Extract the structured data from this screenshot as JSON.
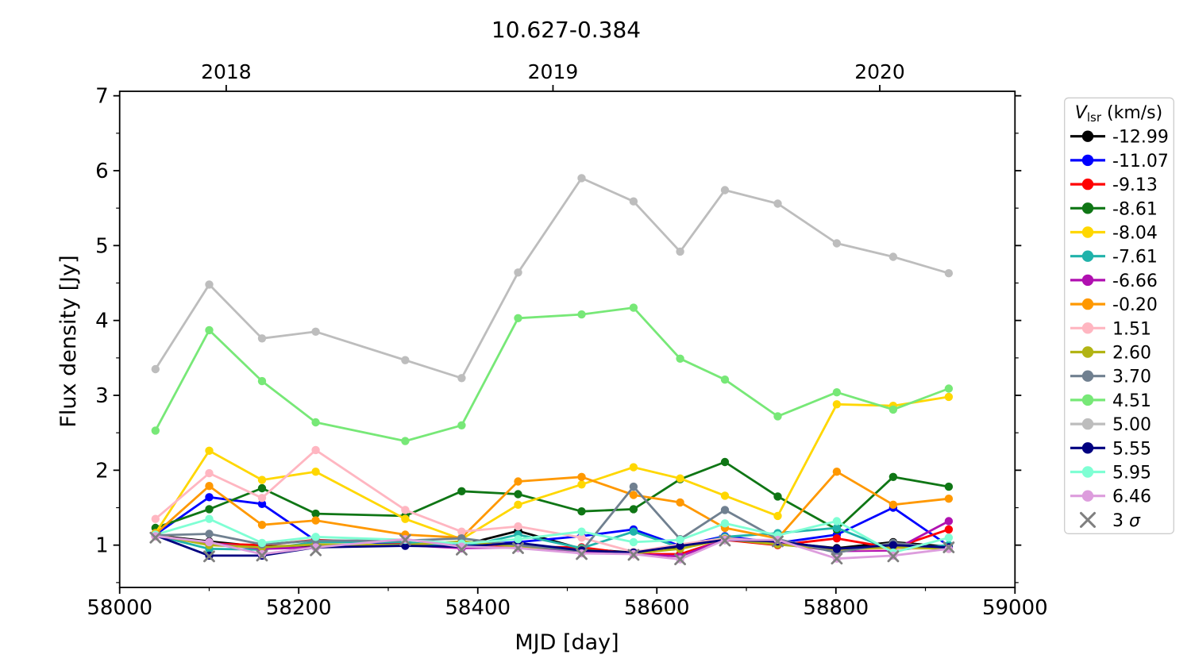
{
  "chart": {
    "title": "10.627-0.384",
    "top_axis": {
      "labels": [
        "2018",
        "2019",
        "2020"
      ],
      "tick_mjd": [
        58119,
        58484,
        58849
      ]
    },
    "x_axis": {
      "label": "MJD [day]",
      "tick_labels": [
        "58000",
        "58200",
        "58400",
        "58600",
        "58800",
        "59000"
      ],
      "minor_step": 100
    },
    "y_axis": {
      "label": "Flux density [Jy]",
      "tick_labels": [
        "1",
        "2",
        "3",
        "4",
        "5",
        "6",
        "7"
      ],
      "minor_step": 0.5
    },
    "legend": {
      "title_v": "V",
      "title_sub": "lsr",
      "title_rest": " (km/s)",
      "sigma_prefix": "3 ",
      "sigma_symbol": "σ"
    }
  },
  "chart_data": {
    "type": "line",
    "title": "10.627-0.384",
    "xlabel": "MJD [day]",
    "ylabel": "Flux density [Jy]",
    "xlim": [
      58000,
      59000
    ],
    "ylim": [
      0.435,
      7.06
    ],
    "grid": false,
    "legend_position": "outside-right",
    "legend_title": "V_lsr (km/s)",
    "x": [
      58040,
      58100,
      58159,
      58219,
      58319,
      58382,
      58445,
      58516,
      58574,
      58626,
      58676,
      58735,
      58801,
      58864,
      58926
    ],
    "series": [
      {
        "name": "-12.99",
        "color": "#000000",
        "marker": "circle",
        "values": [
          1.13,
          1.05,
          0.98,
          1.0,
          1.0,
          1.0,
          1.19,
          0.95,
          0.9,
          0.98,
          1.07,
          1.04,
          0.96,
          1.04,
          0.98
        ]
      },
      {
        "name": "-11.07",
        "color": "#0000FF",
        "marker": "circle",
        "values": [
          1.14,
          1.64,
          1.55,
          1.06,
          1.02,
          1.0,
          1.04,
          1.12,
          1.21,
          0.99,
          1.12,
          1.03,
          1.14,
          1.5,
          0.99
        ]
      },
      {
        "name": "-9.13",
        "color": "#FF0000",
        "marker": "circle",
        "values": [
          1.12,
          1.02,
          1.0,
          1.07,
          1.03,
          0.97,
          0.98,
          0.97,
          0.88,
          0.88,
          1.07,
          1.0,
          1.09,
          0.96,
          1.21
        ]
      },
      {
        "name": "-8.61",
        "color": "#0F7615",
        "marker": "circle",
        "values": [
          1.23,
          1.48,
          1.76,
          1.42,
          1.39,
          1.72,
          1.68,
          1.45,
          1.48,
          1.88,
          2.11,
          1.65,
          1.21,
          1.91,
          1.78
        ]
      },
      {
        "name": "-8.04",
        "color": "#FFD700",
        "marker": "circle",
        "values": [
          1.16,
          2.26,
          1.87,
          1.98,
          1.35,
          1.08,
          1.54,
          1.81,
          2.04,
          1.89,
          1.66,
          1.39,
          2.88,
          2.86,
          2.98
        ]
      },
      {
        "name": "-7.61",
        "color": "#20B2AA",
        "marker": "circle",
        "values": [
          1.13,
          0.95,
          0.94,
          1.04,
          1.04,
          0.97,
          1.14,
          0.96,
          1.18,
          0.97,
          1.11,
          1.16,
          1.23,
          0.93,
          1.0
        ]
      },
      {
        "name": "-6.66",
        "color": "#B010B0",
        "marker": "circle",
        "values": [
          1.12,
          1.03,
          0.95,
          0.97,
          1.0,
          0.96,
          0.97,
          0.92,
          0.88,
          0.85,
          1.08,
          1.02,
          0.92,
          0.93,
          1.32
        ]
      },
      {
        "name": "-0.20",
        "color": "#FF9800",
        "marker": "circle",
        "values": [
          1.15,
          1.79,
          1.27,
          1.33,
          1.14,
          1.1,
          1.85,
          1.91,
          1.67,
          1.57,
          1.23,
          1.09,
          1.98,
          1.54,
          1.62
        ]
      },
      {
        "name": "1.51",
        "color": "#FFB6C1",
        "marker": "circle",
        "values": [
          1.35,
          1.96,
          1.63,
          2.27,
          1.47,
          1.18,
          1.25,
          1.1,
          0.91,
          1.01,
          1.09,
          1.05,
          0.94,
          0.95,
          0.96
        ]
      },
      {
        "name": "2.60",
        "color": "#B2B414",
        "marker": "circle",
        "values": [
          1.14,
          1.0,
          0.97,
          1.01,
          1.0,
          1.05,
          0.98,
          0.94,
          0.89,
          0.95,
          1.08,
          1.01,
          0.94,
          0.97,
          0.95
        ]
      },
      {
        "name": "3.70",
        "color": "#708090",
        "marker": "circle",
        "values": [
          1.13,
          1.15,
          1.01,
          1.06,
          1.06,
          1.09,
          1.0,
          0.92,
          1.78,
          1.08,
          1.47,
          1.08,
          0.9,
          1.03,
          0.96
        ]
      },
      {
        "name": "4.51",
        "color": "#77E877",
        "marker": "circle",
        "values": [
          2.53,
          3.87,
          3.19,
          2.64,
          2.39,
          2.6,
          4.03,
          4.08,
          4.17,
          3.49,
          3.21,
          2.72,
          3.04,
          2.81,
          3.09
        ]
      },
      {
        "name": "5.00",
        "color": "#BDBDBD",
        "marker": "circle",
        "values": [
          3.35,
          4.48,
          3.76,
          3.85,
          3.47,
          3.23,
          4.64,
          5.9,
          5.59,
          4.92,
          5.74,
          5.56,
          5.03,
          4.85,
          4.63
        ]
      },
      {
        "name": "5.55",
        "color": "#000080",
        "marker": "circle",
        "values": [
          1.13,
          0.86,
          0.86,
          0.97,
          0.99,
          0.98,
          1.03,
          0.93,
          0.9,
          0.99,
          1.07,
          1.05,
          0.95,
          1.0,
          0.97
        ]
      },
      {
        "name": "5.95",
        "color": "#7FFFD4",
        "marker": "circle",
        "values": [
          1.14,
          1.35,
          1.03,
          1.11,
          1.07,
          1.02,
          1.08,
          1.18,
          1.04,
          1.07,
          1.29,
          1.13,
          1.32,
          0.9,
          1.1
        ]
      },
      {
        "name": "6.46",
        "color": "#DD9DDD",
        "marker": "circle",
        "values": [
          1.12,
          1.04,
          0.88,
          0.97,
          1.08,
          0.98,
          0.96,
          0.89,
          0.88,
          0.81,
          1.07,
          1.07,
          0.82,
          0.86,
          0.95
        ]
      },
      {
        "name": "3 σ",
        "color": "#7F7F7F",
        "marker": "x",
        "line": false,
        "values": [
          1.1,
          0.85,
          0.86,
          0.93,
          1.07,
          0.94,
          0.96,
          0.88,
          0.87,
          0.81,
          1.06,
          1.05,
          0.82,
          0.85,
          0.97
        ]
      }
    ]
  }
}
